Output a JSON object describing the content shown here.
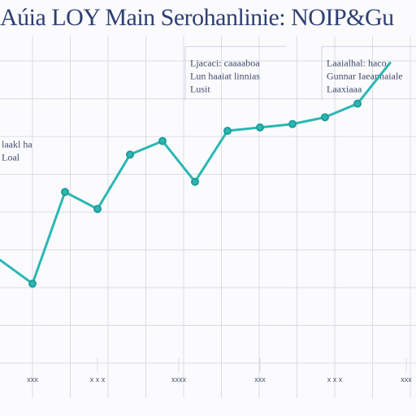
{
  "colors": {
    "title": "#2f3f73",
    "line": "#2bb7b3",
    "grid": "#d9dce3",
    "annotation_box": "#cfd3e3"
  },
  "chart_data": {
    "type": "line",
    "title": "Aúia LOY Main Serohanlinie: NOIP&Gu",
    "xlabel": "",
    "ylabel": "",
    "x": [
      0,
      1,
      2,
      3,
      4,
      5,
      6,
      7,
      8,
      9,
      10,
      11,
      12
    ],
    "xlim": [
      0,
      12.8
    ],
    "ylim": [
      0,
      10
    ],
    "grid": true,
    "legend": "none",
    "x_tick_labels": [
      {
        "at": 1,
        "text": "xxx"
      },
      {
        "at": 3,
        "text": "x x x"
      },
      {
        "at": 5.5,
        "text": "xxxx"
      },
      {
        "at": 8,
        "text": "xxx"
      },
      {
        "at": 10.3,
        "text": "x x x"
      },
      {
        "at": 12.5,
        "text": "xxx"
      }
    ],
    "series": [
      {
        "values": [
          3.4,
          2.7,
          5.4,
          4.9,
          6.5,
          6.9,
          5.7,
          7.2,
          7.3,
          7.4,
          7.6,
          8.0,
          9.2
        ]
      }
    ],
    "annotations": [
      {
        "lines": [
          "Ljacaci: caaaaboa",
          "Lun haaiat linnias",
          "Lusit"
        ],
        "x": 5.8,
        "y": 9.3,
        "box": true
      },
      {
        "lines": [
          "Laaialhal: haco",
          "Gunnar Iaeannaiale",
          "Laaxiaaa"
        ],
        "x": 10,
        "y": 9.3,
        "box": true
      },
      {
        "lines": [
          "laakl ha",
          "Loal"
        ],
        "x": 0,
        "y": 6.9,
        "box": false
      }
    ]
  }
}
